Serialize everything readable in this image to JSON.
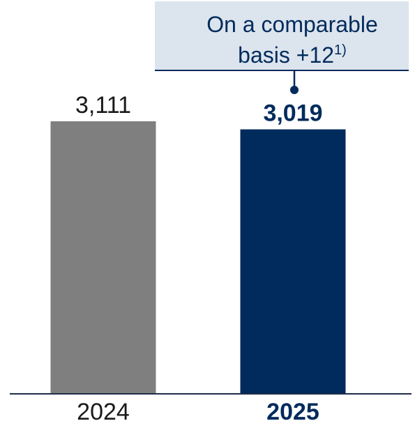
{
  "chart_data": {
    "type": "bar",
    "categories": [
      "2024",
      "2025"
    ],
    "values": [
      3111,
      3019
    ],
    "value_labels": [
      "3,111",
      "3,019"
    ],
    "ylim": [
      0,
      3111
    ],
    "grid": false,
    "legend": "none",
    "colors": [
      "#7f7f7f",
      "#002b5c"
    ],
    "highlight_category": "2025",
    "annotation": {
      "line1": "On a comparable",
      "line2": "basis +12",
      "footnote": "1)",
      "target_category": "2025"
    }
  },
  "colors": {
    "text": "#002b5c",
    "callout_bg": "#dce4ee",
    "baseline": "#1f2d4a"
  }
}
